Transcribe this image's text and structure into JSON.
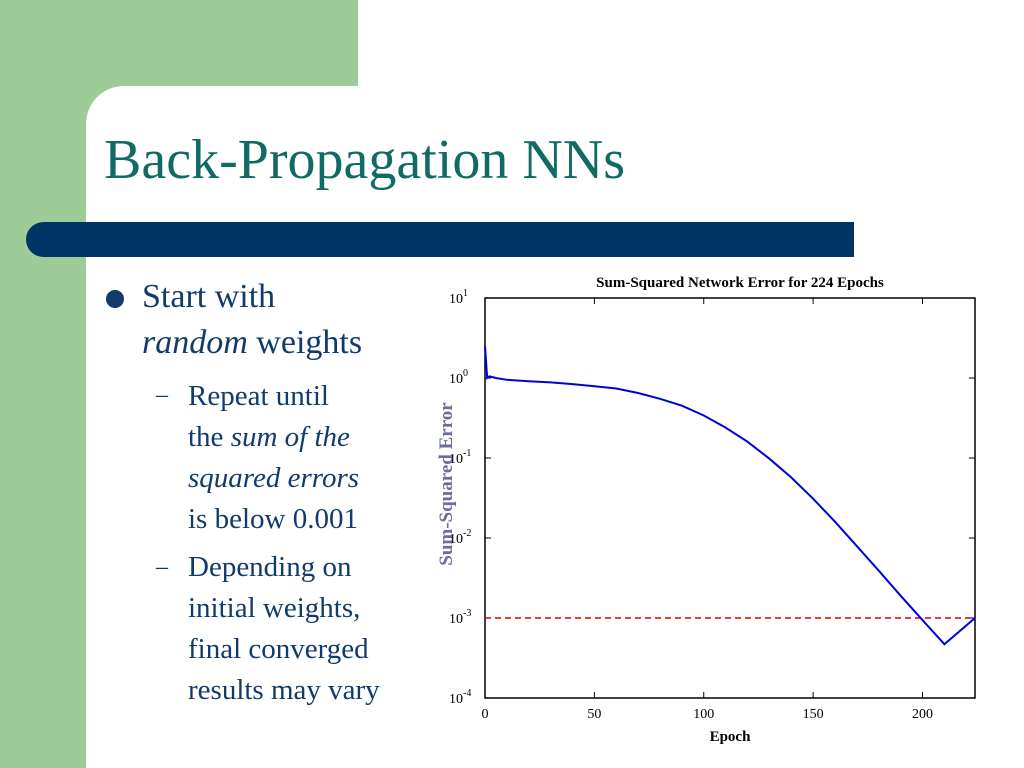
{
  "slide": {
    "title": "Back-Propagation NNs",
    "bullet": {
      "line1": "Start with",
      "line2_italic": "random",
      "line2_rest": " weights"
    },
    "sub1": {
      "line1": "Repeat until",
      "line2_plain": "the ",
      "line2_italic": "sum of the",
      "line3_italic": "squared errors",
      "line4": "is below 0.001"
    },
    "sub2": {
      "lines": [
        "Depending on",
        "initial weights,",
        "final converged",
        "results may vary"
      ]
    },
    "dash": "–"
  },
  "colors": {
    "background_green": "#9dcc98",
    "title_teal": "#0f6b63",
    "rule_navy": "#003466",
    "body_text": "#113b6b",
    "series_blue": "#0000dd",
    "threshold_red": "#d00000",
    "ylabel_color": "#6b6b9e"
  },
  "chart_data": {
    "type": "line",
    "title": "Sum-Squared Network Error for 224 Epochs",
    "xlabel": "Epoch",
    "ylabel": "Sum-Squared Error",
    "xlim": [
      0,
      224
    ],
    "ylim": [
      0.0001,
      10
    ],
    "yscale": "log",
    "x_ticks": [
      0,
      50,
      100,
      150,
      200
    ],
    "y_ticks": [
      {
        "value": 10,
        "base": "10",
        "exp": "1"
      },
      {
        "value": 1,
        "base": "10",
        "exp": "0"
      },
      {
        "value": 0.1,
        "base": "10",
        "exp": "-1"
      },
      {
        "value": 0.01,
        "base": "10",
        "exp": "-2"
      },
      {
        "value": 0.001,
        "base": "10",
        "exp": "-3"
      },
      {
        "value": 0.0001,
        "base": "10",
        "exp": "-4"
      }
    ],
    "series": [
      {
        "x": [
          0,
          1,
          2,
          5,
          10,
          20,
          30,
          40,
          50,
          60,
          70,
          80,
          90,
          100,
          110,
          120,
          130,
          140,
          150,
          160,
          170,
          180,
          190,
          200,
          210,
          224
        ],
        "y": [
          2.5,
          1.0,
          1.05,
          1.0,
          0.95,
          0.91,
          0.88,
          0.84,
          0.79,
          0.74,
          0.65,
          0.55,
          0.45,
          0.34,
          0.24,
          0.16,
          0.098,
          0.057,
          0.031,
          0.016,
          0.0079,
          0.0039,
          0.0019,
          0.00094,
          0.00047,
          0.001
        ]
      }
    ],
    "threshold": {
      "y": 0.001,
      "style": "dashed"
    }
  }
}
